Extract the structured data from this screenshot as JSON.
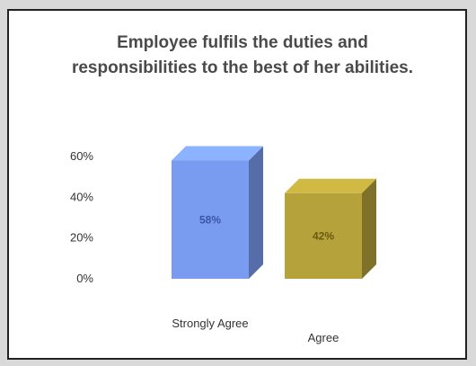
{
  "chart_data": {
    "type": "bar",
    "title": "Employee fulfils the duties and responsibilities to the best of her abilities.",
    "categories": [
      "Strongly Agree",
      "Agree"
    ],
    "values": [
      58,
      42
    ],
    "data_labels": [
      "58%",
      "42%"
    ],
    "ylim": [
      0,
      60
    ],
    "y_ticks": [
      "0%",
      "20%",
      "40%",
      "60%"
    ],
    "y_tick_values": [
      0,
      20,
      40,
      60
    ],
    "grid": false,
    "legend": "none",
    "colors": [
      "#7a9cf0",
      "#b5a23a"
    ],
    "label_colors": [
      "#3b55a8",
      "#6b5a10"
    ]
  }
}
